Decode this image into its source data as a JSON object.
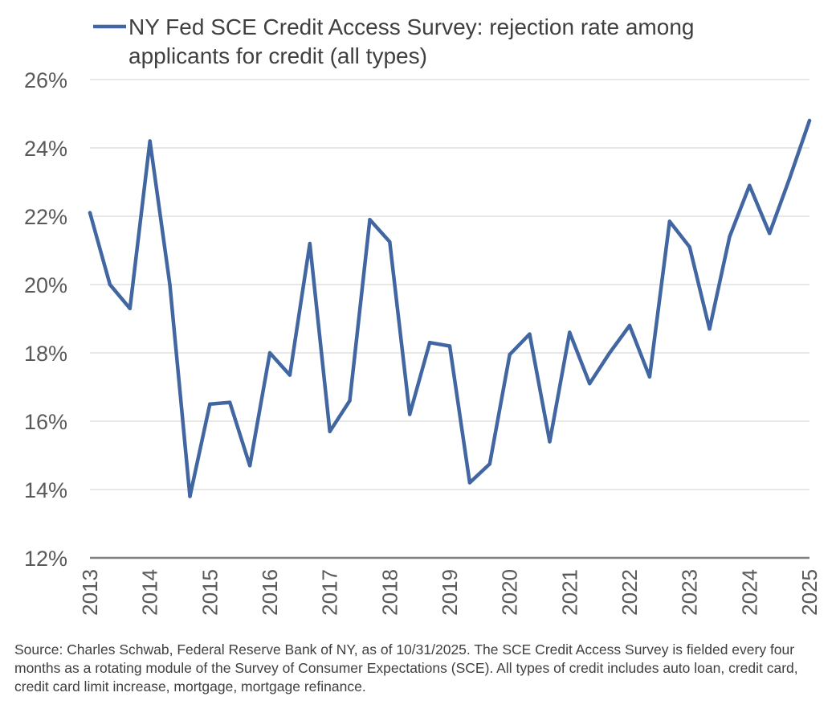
{
  "chart_data": {
    "type": "line",
    "series": [
      {
        "name": "NY Fed SCE Credit Access Survey: rejection rate among applicants for credit (all types)",
        "x": [
          2013.0,
          2013.333,
          2013.667,
          2014.0,
          2014.333,
          2014.667,
          2015.0,
          2015.333,
          2015.667,
          2016.0,
          2016.333,
          2016.667,
          2017.0,
          2017.333,
          2017.667,
          2018.0,
          2018.333,
          2018.667,
          2019.0,
          2019.333,
          2019.667,
          2020.0,
          2020.333,
          2020.667,
          2021.0,
          2021.333,
          2021.667,
          2022.0,
          2022.333,
          2022.667,
          2023.0,
          2023.333,
          2023.667,
          2024.0,
          2024.333,
          2024.667,
          2025.0
        ],
        "values": [
          22.1,
          20.0,
          19.3,
          24.2,
          20.0,
          13.8,
          16.5,
          16.55,
          14.7,
          18.0,
          17.35,
          21.2,
          15.7,
          16.6,
          21.9,
          21.25,
          16.2,
          18.3,
          18.2,
          14.2,
          14.75,
          17.95,
          18.55,
          15.4,
          18.6,
          17.1,
          18.0,
          18.8,
          17.3,
          21.85,
          21.1,
          18.7,
          21.4,
          22.9,
          21.5,
          23.1,
          24.8
        ]
      }
    ],
    "title": "",
    "xlabel": "",
    "ylabel": "",
    "xlim": [
      2013,
      2025
    ],
    "ylim": [
      12,
      26
    ],
    "y_ticks": [
      12,
      14,
      16,
      18,
      20,
      22,
      24,
      26
    ],
    "y_tick_labels": [
      "12%",
      "14%",
      "16%",
      "18%",
      "20%",
      "22%",
      "24%",
      "26%"
    ],
    "x_ticks": [
      2013,
      2014,
      2015,
      2016,
      2017,
      2018,
      2019,
      2020,
      2021,
      2022,
      2023,
      2024,
      2025
    ],
    "x_tick_labels": [
      "2013",
      "2014",
      "2015",
      "2016",
      "2017",
      "2018",
      "2019",
      "2020",
      "2021",
      "2022",
      "2023",
      "2024",
      "2025"
    ],
    "x_tick_rotation": "vertical",
    "grid": "horizontal",
    "legend": {
      "placement": "top",
      "lines": [
        "NY Fed SCE Credit Access Survey: rejection rate among",
        "applicants for credit (all types)"
      ]
    },
    "colors": {
      "series": "#4166a1",
      "grid": "#d9d9d9",
      "axis": "#7f7f7f",
      "text": "#595959"
    }
  },
  "source_note": "Source: Charles Schwab, Federal Reserve Bank of NY, as of 10/31/2025.  The SCE Credit Access Survey is fielded every four months as a rotating module of the Survey of Consumer Expectations (SCE).  All types of credit includes auto loan, credit card, credit card limit increase, mortgage, mortgage refinance."
}
